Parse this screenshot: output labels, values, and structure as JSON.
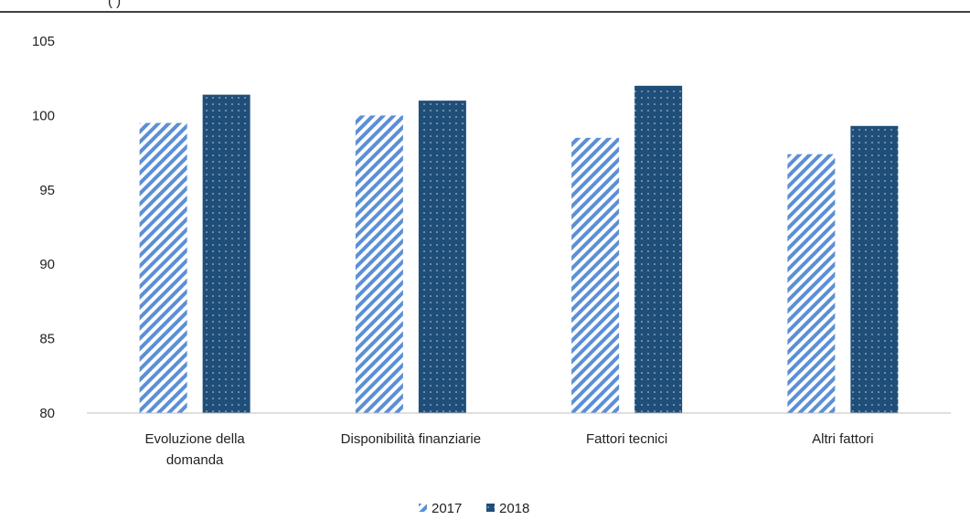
{
  "header": {
    "partial_text": "(                                        )"
  },
  "chart_data": {
    "type": "bar",
    "title": "",
    "xlabel": "",
    "ylabel": "",
    "ylim": [
      80,
      105
    ],
    "yticks": [
      80,
      85,
      90,
      95,
      100,
      105
    ],
    "categories": [
      [
        "Evoluzione della",
        "domanda"
      ],
      [
        "Disponibilità finanziarie"
      ],
      [
        "Fattori tecnici"
      ],
      [
        "Altri fattori"
      ]
    ],
    "series": [
      {
        "name": "2017",
        "values": [
          99.5,
          100.0,
          98.5,
          97.4
        ],
        "color": "#5b8fd6",
        "pattern": "diagonal-stripes"
      },
      {
        "name": "2018",
        "values": [
          101.4,
          101.0,
          102.0,
          99.3
        ],
        "color": "#1f4e79",
        "pattern": "dots"
      }
    ],
    "legend": {
      "position": "bottom"
    },
    "grid": false
  }
}
